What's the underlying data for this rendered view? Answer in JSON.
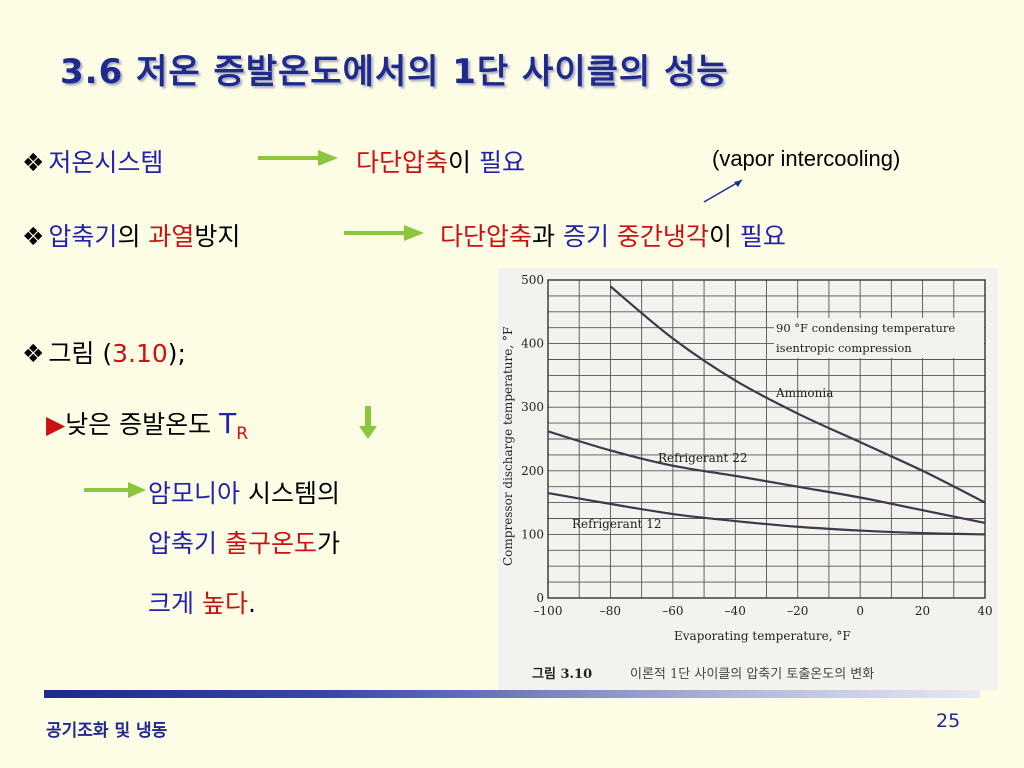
{
  "slide": {
    "title": "3.6 저온 증발온도에서의 1단 사이클의 성능",
    "line1": {
      "a": "저온시스템",
      "b": "다단압축",
      "c": "이 ",
      "d": "필요"
    },
    "note": "(vapor intercooling)",
    "line2": {
      "a": "압축기",
      "b": "의 ",
      "c": "과열",
      "d": "방지",
      "e": "다단압축",
      "f": "과 ",
      "g": "증기 ",
      "h": "중간냉각",
      "i": "이 ",
      "j": "필요"
    },
    "line3": {
      "a": "그림 (",
      "b": "3.10",
      "c": ");"
    },
    "line4": {
      "a": "낮은 증발온도 ",
      "b": "T",
      "c": "R"
    },
    "line5": {
      "a": "암모니아",
      "b": " 시스템의"
    },
    "line6": {
      "a": "압축기 ",
      "b": "출구온도",
      "c": "가"
    },
    "line7": {
      "a": "크게 ",
      "b": "높다",
      "c": "."
    },
    "bullet_glyph": "❖",
    "play_glyph": "▶"
  },
  "figure": {
    "caption_label": "그림 3.10",
    "caption_text": "이론적 1단 사이클의 압축기 토출온도의 변화",
    "annotation_1": "90 °F condensing temperature",
    "annotation_2": "isentropic compression"
  },
  "chart_data": {
    "type": "line",
    "title": "",
    "xlabel": "Evaporating temperature, °F",
    "ylabel": "Compressor discharge temperature, °F",
    "xlim": [
      -100,
      40
    ],
    "ylim": [
      0,
      500
    ],
    "x_ticks": [
      -100,
      -80,
      -60,
      -40,
      -20,
      0,
      20,
      40
    ],
    "y_ticks": [
      0,
      100,
      200,
      300,
      400,
      500
    ],
    "grid": true,
    "series": [
      {
        "name": "Ammonia",
        "x": [
          -80,
          -60,
          -40,
          -20,
          0,
          20,
          40
        ],
        "y": [
          490,
          408,
          342,
          290,
          245,
          200,
          150
        ]
      },
      {
        "name": "Refrigerant 22",
        "x": [
          -100,
          -80,
          -60,
          -40,
          -20,
          0,
          20,
          40
        ],
        "y": [
          262,
          232,
          208,
          192,
          175,
          158,
          138,
          118
        ]
      },
      {
        "name": "Refrigerant 12",
        "x": [
          -100,
          -80,
          -60,
          -40,
          -20,
          0,
          20,
          40
        ],
        "y": [
          165,
          148,
          132,
          121,
          112,
          106,
          102,
          100
        ]
      }
    ]
  },
  "footer": {
    "left": "공기조화 및 냉동",
    "page": "25"
  },
  "colors": {
    "title": "#1e2a8c",
    "accent_blue": "#2222aa",
    "accent_red": "#cc1111",
    "arrow_green": "#8cc63f"
  }
}
